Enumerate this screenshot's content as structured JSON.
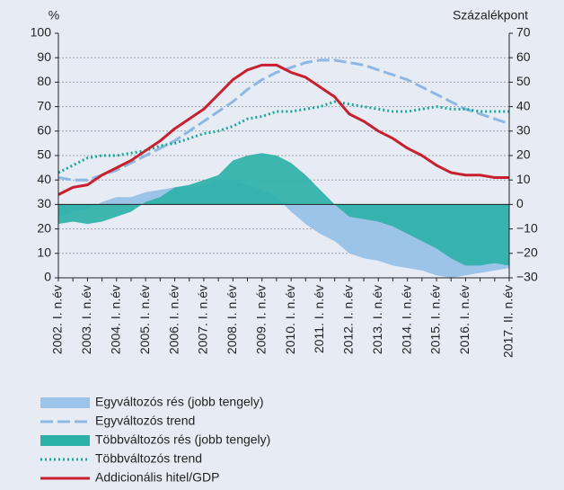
{
  "chart_data": {
    "type": "combo",
    "ylabel": "%",
    "y2label": "Százalékpont",
    "ylim": [
      0,
      100
    ],
    "yticks": [
      0,
      10,
      20,
      30,
      40,
      50,
      60,
      70,
      80,
      90,
      100
    ],
    "y2lim": [
      -30,
      70
    ],
    "y2ticks": [
      {
        "value": -30,
        "label": "−30"
      },
      {
        "value": -20,
        "label": "−20"
      },
      {
        "value": -10,
        "label": "−10"
      },
      0,
      10,
      20,
      30,
      40,
      50,
      60,
      70
    ],
    "grid": true,
    "categories": [
      "2002. I. n.év",
      null,
      "2003. I. n.év",
      null,
      "2004. I. n.év",
      null,
      "2005. I. n.év",
      null,
      "2006. I. n.év",
      null,
      "2007. I. n.év",
      null,
      "2008. I. n.év",
      null,
      "2009. I. n.év",
      null,
      "2010. I. n.év",
      null,
      "2011. I. n.év",
      null,
      "2012. I. n.év",
      null,
      "2013. I. n.év",
      null,
      "2014. I. n.év",
      null,
      "2015. I. n.év",
      null,
      "2016. I. n.év",
      null,
      null,
      "2017. II. n.év"
    ],
    "series": [
      {
        "name": "Egyváltozós rés (jobb tengely)",
        "style": "area",
        "axis": "y2",
        "color": "#9cc3e8",
        "values": [
          -5,
          -3,
          -2,
          1,
          3,
          3,
          5,
          6,
          7,
          7,
          8,
          10,
          10,
          8,
          6,
          3,
          -3,
          -8,
          -12,
          -15,
          -20,
          -22,
          -23,
          -25,
          -26,
          -27,
          -29,
          -30,
          -29,
          -28,
          -27,
          -26
        ]
      },
      {
        "name": "Egyváltozós trend",
        "style": "dash",
        "axis": "y2",
        "color": "#8db8e3",
        "values": [
          11,
          10,
          10,
          12,
          14,
          17,
          20,
          23,
          26,
          30,
          34,
          38,
          42,
          47,
          51,
          54,
          56,
          58,
          59,
          59,
          58,
          57,
          55,
          53,
          51,
          48,
          45,
          42,
          39,
          37,
          35,
          33
        ]
      },
      {
        "name": "Többváltozós rés (jobb tengely)",
        "style": "area",
        "axis": "y2",
        "color": "#2bb0a8",
        "values": [
          -8,
          -7,
          -8,
          -7,
          -5,
          -3,
          1,
          3,
          7,
          8,
          10,
          12,
          18,
          20,
          21,
          20,
          17,
          12,
          6,
          0,
          -5,
          -6,
          -7,
          -9,
          -12,
          -15,
          -18,
          -22,
          -25,
          -25,
          -24,
          -25
        ]
      },
      {
        "name": "Többváltozós trend",
        "style": "dot",
        "axis": "y2",
        "color": "#1aa89a",
        "values": [
          13,
          16,
          19,
          20,
          20,
          21,
          22,
          24,
          25,
          27,
          29,
          30,
          32,
          35,
          36,
          38,
          38,
          39,
          40,
          42,
          41,
          40,
          39,
          38,
          38,
          39,
          40,
          39,
          39,
          38,
          38,
          38
        ]
      },
      {
        "name": "Addicionális hitel/GDP",
        "style": "solid",
        "axis": "y",
        "color": "#c8202f",
        "values": [
          34,
          37,
          38,
          42,
          45,
          48,
          52,
          56,
          61,
          65,
          69,
          75,
          81,
          85,
          87,
          87,
          84,
          82,
          78,
          74,
          67,
          64,
          60,
          57,
          53,
          50,
          46,
          43,
          42,
          42,
          41,
          41
        ]
      }
    ]
  }
}
